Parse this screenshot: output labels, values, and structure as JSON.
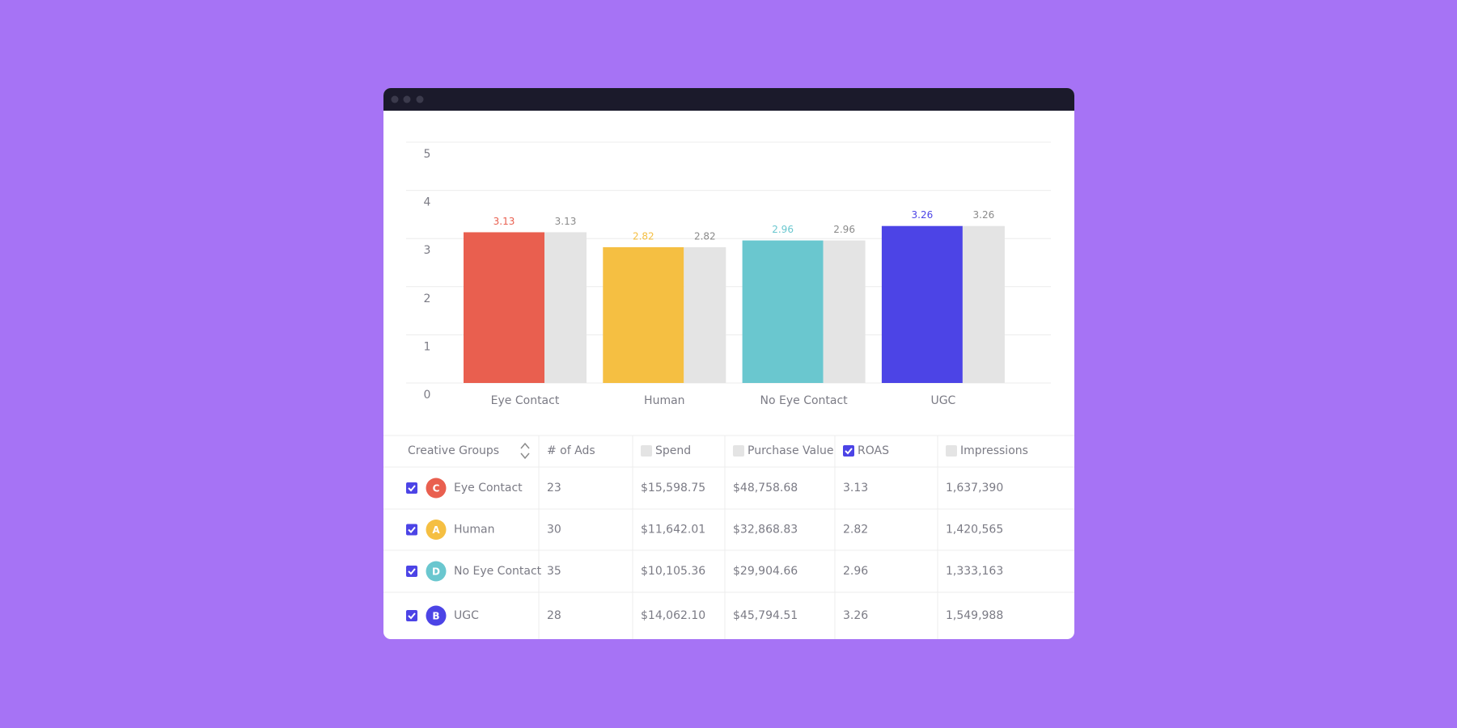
{
  "chart_data": {
    "type": "bar",
    "categories": [
      "Eye Contact",
      "Human",
      "No Eye Contact",
      "UGC"
    ],
    "series": [
      {
        "colors": [
          "#e95f4f",
          "#f5bf42",
          "#6ac7cf",
          "#4c44e6"
        ],
        "values": [
          3.13,
          2.82,
          2.96,
          3.26
        ]
      },
      {
        "color": "#e4e4e4",
        "values": [
          3.13,
          2.82,
          2.96,
          3.26
        ]
      }
    ],
    "ylim": [
      0,
      5
    ],
    "yticks": [
      0,
      1,
      2,
      3,
      4,
      5
    ],
    "grid": true
  },
  "table": {
    "columns": [
      {
        "label": "Creative Groups",
        "sortable": true
      },
      {
        "label": "# of Ads"
      },
      {
        "label": "Spend",
        "checked": false
      },
      {
        "label": "Purchase Value",
        "checked": false
      },
      {
        "label": "ROAS",
        "checked": true
      },
      {
        "label": "Impressions",
        "checked": false
      }
    ],
    "rows": [
      {
        "selected": true,
        "badge": "C",
        "color": "#e95f4f",
        "cells": [
          "Eye Contact",
          "23",
          "$15,598.75",
          "$48,758.68",
          "3.13",
          "1,637,390"
        ]
      },
      {
        "selected": true,
        "badge": "A",
        "color": "#f5bf42",
        "cells": [
          "Human",
          "30",
          "$11,642.01",
          "$32,868.83",
          "2.82",
          "1,420,565"
        ]
      },
      {
        "selected": true,
        "badge": "D",
        "color": "#6ac7cf",
        "cells": [
          "No Eye Contact",
          "35",
          "$10,105.36",
          "$29,904.66",
          "2.96",
          "1,333,163"
        ]
      },
      {
        "selected": true,
        "badge": "B",
        "color": "#4c44e6",
        "cells": [
          "UGC",
          "28",
          "$14,062.10",
          "$45,794.51",
          "3.26",
          "1,549,988"
        ]
      }
    ]
  }
}
